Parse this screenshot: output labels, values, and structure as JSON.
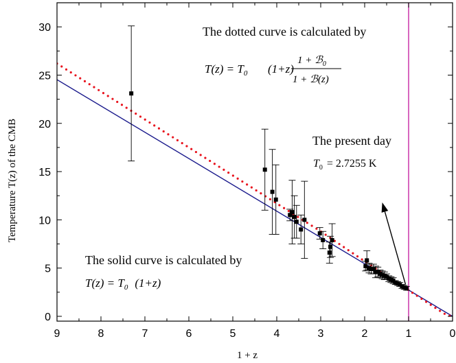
{
  "chart_data": {
    "type": "scatter",
    "xlabel": "1 + z",
    "ylabel": "Temperature T(z) of the CMB",
    "xlim": [
      9,
      0
    ],
    "ylim": [
      -0.5,
      32.5
    ],
    "x_reversed": true,
    "x_ticks": [
      9,
      8,
      7,
      6,
      5,
      4,
      3,
      2,
      1,
      0
    ],
    "y_ticks": [
      0,
      5,
      10,
      15,
      20,
      25,
      30
    ],
    "grid": false,
    "points": [
      {
        "x": 7.31,
        "y": 23.1,
        "err": 7.0
      },
      {
        "x": 4.27,
        "y": 15.2,
        "err": 4.2
      },
      {
        "x": 4.1,
        "y": 12.9,
        "err": 4.4
      },
      {
        "x": 4.02,
        "y": 12.1,
        "err": 3.6
      },
      {
        "x": 3.7,
        "y": 10.5,
        "err": 0.6
      },
      {
        "x": 3.65,
        "y": 10.8,
        "err": 3.3
      },
      {
        "x": 3.6,
        "y": 10.3,
        "err": 2.2
      },
      {
        "x": 3.55,
        "y": 9.8,
        "err": 1.7
      },
      {
        "x": 3.45,
        "y": 9.0,
        "err": 1.5
      },
      {
        "x": 3.37,
        "y": 10.0,
        "err": 4.0
      },
      {
        "x": 3.02,
        "y": 8.6,
        "err": 0.6
      },
      {
        "x": 2.95,
        "y": 7.9,
        "err": 0.9
      },
      {
        "x": 2.8,
        "y": 6.6,
        "err": 1.1
      },
      {
        "x": 2.78,
        "y": 7.2,
        "err": 1.1
      },
      {
        "x": 2.74,
        "y": 7.9,
        "err": 1.7
      },
      {
        "x": 1.98,
        "y": 5.2,
        "err": 0.5
      },
      {
        "x": 1.95,
        "y": 5.8,
        "err": 1.0
      },
      {
        "x": 1.9,
        "y": 5.0,
        "err": 0.5
      },
      {
        "x": 1.85,
        "y": 4.9,
        "err": 0.5
      },
      {
        "x": 1.8,
        "y": 4.9,
        "err": 0.5
      },
      {
        "x": 1.75,
        "y": 4.6,
        "err": 0.6
      },
      {
        "x": 1.7,
        "y": 4.6,
        "err": 0.5
      },
      {
        "x": 1.65,
        "y": 4.4,
        "err": 0.4
      },
      {
        "x": 1.6,
        "y": 4.3,
        "err": 0.4
      },
      {
        "x": 1.55,
        "y": 4.2,
        "err": 0.4
      },
      {
        "x": 1.5,
        "y": 4.1,
        "err": 0.3
      },
      {
        "x": 1.45,
        "y": 3.9,
        "err": 0.3
      },
      {
        "x": 1.4,
        "y": 3.8,
        "err": 0.3
      },
      {
        "x": 1.35,
        "y": 3.7,
        "err": 0.3
      },
      {
        "x": 1.3,
        "y": 3.5,
        "err": 0.2
      },
      {
        "x": 1.25,
        "y": 3.4,
        "err": 0.2
      },
      {
        "x": 1.2,
        "y": 3.3,
        "err": 0.2
      },
      {
        "x": 1.15,
        "y": 3.1,
        "err": 0.2
      },
      {
        "x": 1.1,
        "y": 3.0,
        "err": 0.2
      },
      {
        "x": 1.05,
        "y": 2.9,
        "err": 0.2
      }
    ],
    "series": [
      {
        "style": "solid",
        "color": "#1a1a8c",
        "x": [
          9,
          0
        ],
        "y": [
          24.53,
          0
        ]
      },
      {
        "style": "dotted",
        "color": "#e8141e",
        "x": [
          9,
          8,
          7,
          6,
          5,
          4,
          3,
          2,
          1.5,
          1,
          0.5,
          0.3,
          0.2,
          0.1,
          0.05
        ],
        "y": [
          26.2,
          23.3,
          20.4,
          17.5,
          14.6,
          11.7,
          8.8,
          5.7,
          4.2,
          2.7,
          1.2,
          0.6,
          0.3,
          0.1,
          0.05
        ]
      }
    ],
    "vline": {
      "x": 1,
      "color": "#cc33aa"
    },
    "annotations": {
      "dotted_caption": "The dotted curve is calculated by",
      "dotted_formula_lhs": "T(z) = T",
      "dotted_formula_sub": "0",
      "dotted_formula_mid": "(1+z)",
      "dotted_formula_num": "1 + ℬ",
      "dotted_formula_num_sub": "0",
      "dotted_formula_den": "1 + ℬ(z)",
      "present_caption": "The present day",
      "present_value_lhs": "T",
      "present_value_sub": "0",
      "present_value_rhs": "= 2.7255 K",
      "solid_caption": "The solid curve is calculated by",
      "solid_formula_lhs": "T(z) = T",
      "solid_formula_sub": "0",
      "solid_formula_rhs": "(1+z)"
    },
    "arrow": {
      "from": [
        1.07,
        3.3
      ],
      "to": [
        1.6,
        11.8
      ]
    }
  }
}
